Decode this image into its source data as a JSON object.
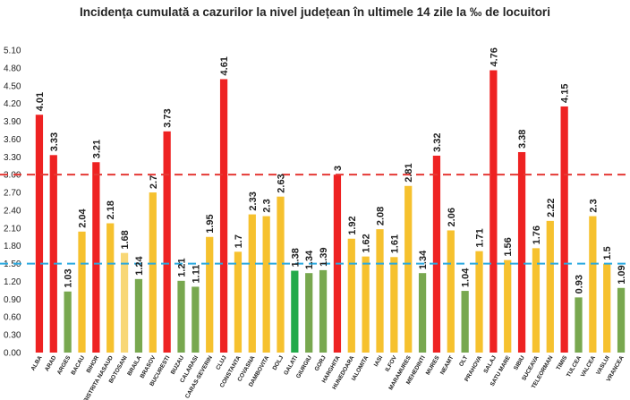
{
  "chart_data": {
    "type": "bar",
    "title": "Incidența cumulată a cazurilor la nivel județean în ultimele 14 zile la ‰ de locuitori",
    "xlabel": "",
    "ylabel": "",
    "ylim": [
      0,
      5.1
    ],
    "yticks": [
      "0.00",
      "0.30",
      "0.60",
      "0.90",
      "1.20",
      "1.50",
      "1.80",
      "2.10",
      "2.40",
      "2.70",
      "3.00",
      "3.30",
      "3.60",
      "3.90",
      "4.20",
      "4.50",
      "4.80",
      "5.10"
    ],
    "grid": false,
    "categories": [
      "ALBA",
      "ARAD",
      "ARGES",
      "BACAU",
      "BIHOR",
      "BISTRITA NASAUD",
      "BOTOSANI",
      "BRAILA",
      "BRASOV",
      "BUCURESTI",
      "BUZAU",
      "CALARASI",
      "CARAS-SEVERIN",
      "CLUJ",
      "CONSTANTA",
      "COVASNA",
      "DAMBOVITA",
      "DOLJ",
      "GALATI",
      "GIURGIU",
      "GORJ",
      "HARGHITA",
      "HUNEDOARA",
      "IALOMITA",
      "IASI",
      "ILFOV",
      "MARAMURES",
      "MEHEDINTI",
      "MURES",
      "NEAMT",
      "OLT",
      "PRAHOVA",
      "SALAJ",
      "SATU MARE",
      "SIBIU",
      "SUCEAVA",
      "TELEORMAN",
      "TIMIS",
      "TULCEA",
      "VALCEA",
      "VASLUI",
      "VRANCEA"
    ],
    "values": [
      4.01,
      3.33,
      1.03,
      2.04,
      3.21,
      2.18,
      1.68,
      1.24,
      2.7,
      3.73,
      1.21,
      1.11,
      1.95,
      4.61,
      1.7,
      2.33,
      2.3,
      2.63,
      1.38,
      1.34,
      1.39,
      3,
      1.92,
      1.62,
      2.08,
      1.61,
      2.81,
      1.34,
      3.32,
      2.06,
      1.04,
      1.71,
      4.76,
      1.56,
      3.38,
      1.76,
      2.22,
      4.15,
      0.93,
      2.3,
      1.5,
      1.09
    ],
    "labels": [
      "4.01",
      "3.33",
      "1.03",
      "2.04",
      "3.21",
      "2.18",
      "1.68",
      "1.24",
      "2.7",
      "3.73",
      "1.21",
      "1.11",
      "1.95",
      "4.61",
      "1.7",
      "2.33",
      "2.3",
      "2.63",
      "1.38",
      "1.34",
      "1.39",
      "3",
      "1.92",
      "1.62",
      "2.08",
      "1.61",
      "2.81",
      "1.34",
      "3.32",
      "2.06",
      "1.04",
      "1.71",
      "4.76",
      "1.56",
      "3.38",
      "1.76",
      "2.22",
      "4.15",
      "0.93",
      "2.3",
      "1.5",
      "1.09"
    ],
    "bar_colors": [
      "red",
      "red",
      "green",
      "yellow",
      "red",
      "yellow",
      "lightyellow",
      "green",
      "yellow",
      "red",
      "green",
      "green",
      "yellow",
      "red",
      "yellow",
      "yellow",
      "yellow",
      "yellow",
      "darkgreen",
      "green",
      "green",
      "red",
      "yellow",
      "yellow",
      "yellow",
      "yellow",
      "yellow",
      "green",
      "red",
      "yellow",
      "green",
      "yellow",
      "red",
      "yellow",
      "red",
      "yellow",
      "yellow",
      "red",
      "green",
      "yellow",
      "yellow",
      "green"
    ],
    "reference_lines": [
      {
        "value": 3.0,
        "color": "#e53935",
        "style": "dashed"
      },
      {
        "value": 1.5,
        "color": "#29a9e0",
        "style": "dashed"
      }
    ],
    "colors": {
      "red": "#ee2222",
      "yellow": "#f6c12e",
      "lightyellow": "#f8d776",
      "green": "#78a84f",
      "darkgreen": "#22aa4a"
    }
  }
}
